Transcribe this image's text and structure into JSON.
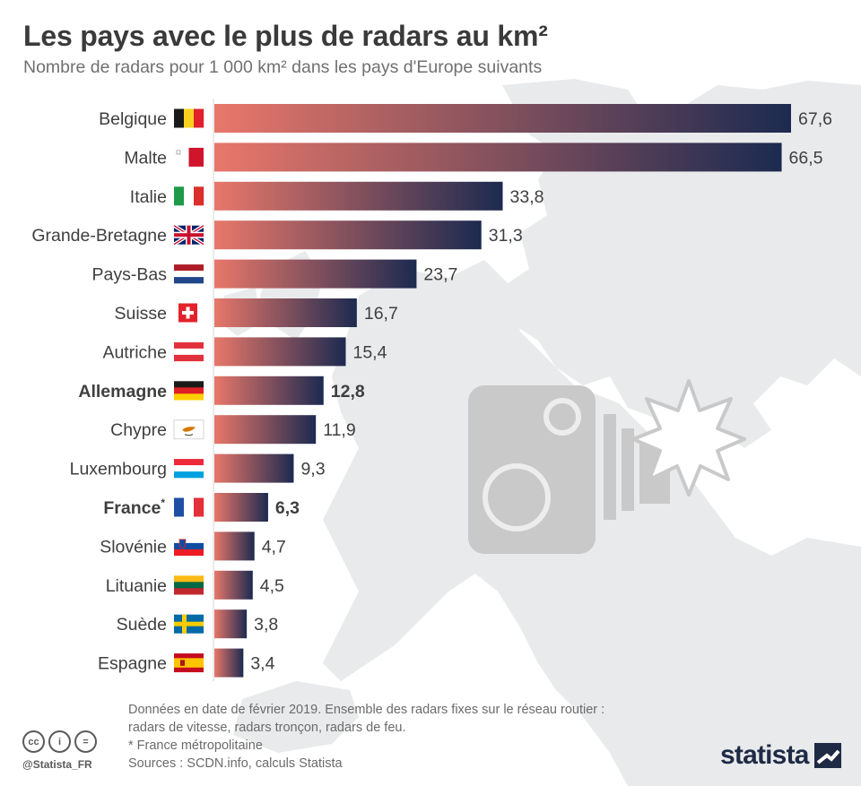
{
  "header": {
    "title": "Les pays avec le plus de radars au km²",
    "subtitle": "Nombre de radars pour 1 000 km² dans les pays d'Europe suivants"
  },
  "chart_data": {
    "type": "bar",
    "orientation": "horizontal",
    "title": "Les pays avec le plus de radars au km²",
    "subtitle": "Nombre de radars pour 1 000 km² dans les pays d'Europe suivants",
    "categories": [
      "Belgique",
      "Malte",
      "Italie",
      "Grande-Bretagne",
      "Pays-Bas",
      "Suisse",
      "Autriche",
      "Allemagne",
      "Chypre",
      "Luxembourg",
      "France",
      "Slovénie",
      "Lituanie",
      "Suède",
      "Espagne"
    ],
    "category_suffix": {
      "France": "*"
    },
    "values": [
      67.6,
      66.5,
      33.8,
      31.3,
      23.7,
      16.7,
      15.4,
      12.8,
      11.9,
      9.3,
      6.3,
      4.7,
      4.5,
      3.8,
      3.4
    ],
    "value_labels": [
      "67,6",
      "66,5",
      "33,8",
      "31,3",
      "23,7",
      "16,7",
      "15,4",
      "12,8",
      "11,9",
      "9,3",
      "6,3",
      "4,7",
      "4,5",
      "3,8",
      "3,4"
    ],
    "highlighted": [
      "Allemagne",
      "France"
    ],
    "highlighted_values": [
      "Allemagne",
      "France"
    ],
    "bar_gradient": {
      "start": "#e8776a",
      "end": "#1c2a50"
    },
    "grid": false,
    "legend": "none"
  },
  "flags": [
    {
      "country": "Belgique",
      "icon": "belgium-flag-icon"
    },
    {
      "country": "Malte",
      "icon": "malta-flag-icon"
    },
    {
      "country": "Italie",
      "icon": "italy-flag-icon"
    },
    {
      "country": "Grande-Bretagne",
      "icon": "uk-flag-icon"
    },
    {
      "country": "Pays-Bas",
      "icon": "netherlands-flag-icon"
    },
    {
      "country": "Suisse",
      "icon": "switzerland-flag-icon"
    },
    {
      "country": "Autriche",
      "icon": "austria-flag-icon"
    },
    {
      "country": "Allemagne",
      "icon": "germany-flag-icon"
    },
    {
      "country": "Chypre",
      "icon": "cyprus-flag-icon"
    },
    {
      "country": "Luxembourg",
      "icon": "luxembourg-flag-icon"
    },
    {
      "country": "France",
      "icon": "france-flag-icon"
    },
    {
      "country": "Slovénie",
      "icon": "slovenia-flag-icon"
    },
    {
      "country": "Lituanie",
      "icon": "lithuania-flag-icon"
    },
    {
      "country": "Suède",
      "icon": "sweden-flag-icon"
    },
    {
      "country": "Espagne",
      "icon": "spain-flag-icon"
    }
  ],
  "decoration": {
    "background": "europe-map-icon",
    "illustration": "speed-camera-icon"
  },
  "footer": {
    "notes": [
      "Données en date de février 2019. Ensemble des radars fixes sur le réseau routier :",
      "radars de vitesse, radars tronçon, radars de feu.",
      "* France métropolitaine"
    ],
    "sources": "Sources : SCDN.info, calculs Statista",
    "license_icons": [
      "cc",
      "i",
      "="
    ],
    "handle": "@Statista_FR",
    "brand": "statista"
  },
  "colors": {
    "title": "#3a3a3a",
    "subtitle": "#707070",
    "map": "#e9eaec",
    "camera": "#c9c9c9",
    "brand": "#1f2b45"
  }
}
